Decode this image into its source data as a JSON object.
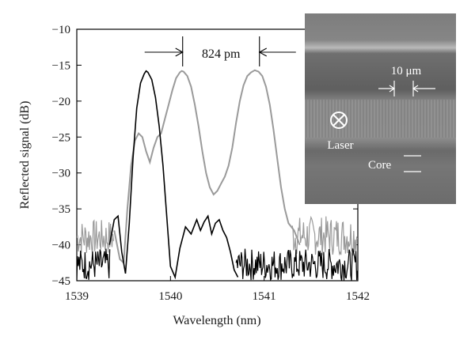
{
  "chart_data": {
    "type": "line",
    "xlabel": "Wavelength (nm)",
    "ylabel": "Reflected signal (dB)",
    "xlim": [
      1539,
      1542
    ],
    "ylim": [
      -45,
      -10
    ],
    "xticks": [
      "1539",
      "1540",
      "1541",
      "1542"
    ],
    "yticks": [
      "-10",
      "-15",
      "-20",
      "-25",
      "-30",
      "-35",
      "-40",
      "-45"
    ],
    "grid": false,
    "colors": {
      "black_trace": "#000000",
      "gray_trace": "#9a9a9a"
    },
    "series": [
      {
        "color_key": "black_trace",
        "x": [
          1539.35,
          1539.4,
          1539.44,
          1539.48,
          1539.52,
          1539.56,
          1539.6,
          1539.64,
          1539.68,
          1539.72,
          1539.74,
          1539.76,
          1539.8,
          1539.84,
          1539.88,
          1539.92,
          1539.96,
          1540.0,
          1540.05,
          1540.1,
          1540.16,
          1540.22,
          1540.28,
          1540.32,
          1540.36,
          1540.4,
          1540.44,
          1540.48,
          1540.52,
          1540.56,
          1540.6,
          1540.64,
          1540.68,
          1540.72
        ],
        "y": [
          -40.0,
          -36.5,
          -36.0,
          -41.0,
          -44.0,
          -37.0,
          -28.0,
          -21.0,
          -17.5,
          -16.2,
          -15.8,
          -16.0,
          -17.0,
          -19.5,
          -23.5,
          -29.0,
          -36.0,
          -43.0,
          -44.5,
          -40.5,
          -37.5,
          -38.5,
          -36.5,
          -38.0,
          -36.8,
          -36.0,
          -38.5,
          -37.0,
          -36.5,
          -38.0,
          -39.0,
          -41.0,
          -43.5,
          -44.5
        ]
      },
      {
        "color_key": "gray_trace",
        "x": [
          1539.4,
          1539.46,
          1539.5,
          1539.54,
          1539.58,
          1539.62,
          1539.66,
          1539.7,
          1539.74,
          1539.78,
          1539.82,
          1539.86,
          1539.9,
          1539.94,
          1539.98,
          1540.02,
          1540.06,
          1540.1,
          1540.12,
          1540.14,
          1540.18,
          1540.22,
          1540.26,
          1540.3,
          1540.34,
          1540.38,
          1540.42,
          1540.46,
          1540.5,
          1540.54,
          1540.58,
          1540.62,
          1540.66,
          1540.7,
          1540.74,
          1540.78,
          1540.82,
          1540.86,
          1540.9,
          1540.94,
          1540.98,
          1541.02,
          1541.06,
          1541.1,
          1541.14,
          1541.18,
          1541.22,
          1541.26,
          1541.32,
          1541.38
        ],
        "y": [
          -38.0,
          -42.0,
          -42.5,
          -35.0,
          -29.0,
          -25.5,
          -24.5,
          -25.0,
          -27.0,
          -28.5,
          -26.5,
          -25.0,
          -24.5,
          -22.5,
          -20.5,
          -18.5,
          -16.8,
          -16.0,
          -15.8,
          -15.9,
          -16.5,
          -18.0,
          -20.5,
          -23.5,
          -27.0,
          -30.0,
          -32.0,
          -33.0,
          -32.5,
          -31.5,
          -30.5,
          -29.0,
          -26.5,
          -23.0,
          -20.0,
          -17.8,
          -16.5,
          -16.0,
          -15.7,
          -15.9,
          -16.5,
          -18.0,
          -20.5,
          -24.0,
          -28.0,
          -32.0,
          -35.0,
          -37.0,
          -38.0,
          -40.0
        ]
      }
    ],
    "annotation": "824 pm",
    "annotation_arrows_x": [
      1540.13,
      1540.95
    ]
  },
  "inset": {
    "width_label": "10 μm",
    "laser_label": "Laser",
    "core_label": "Core"
  }
}
